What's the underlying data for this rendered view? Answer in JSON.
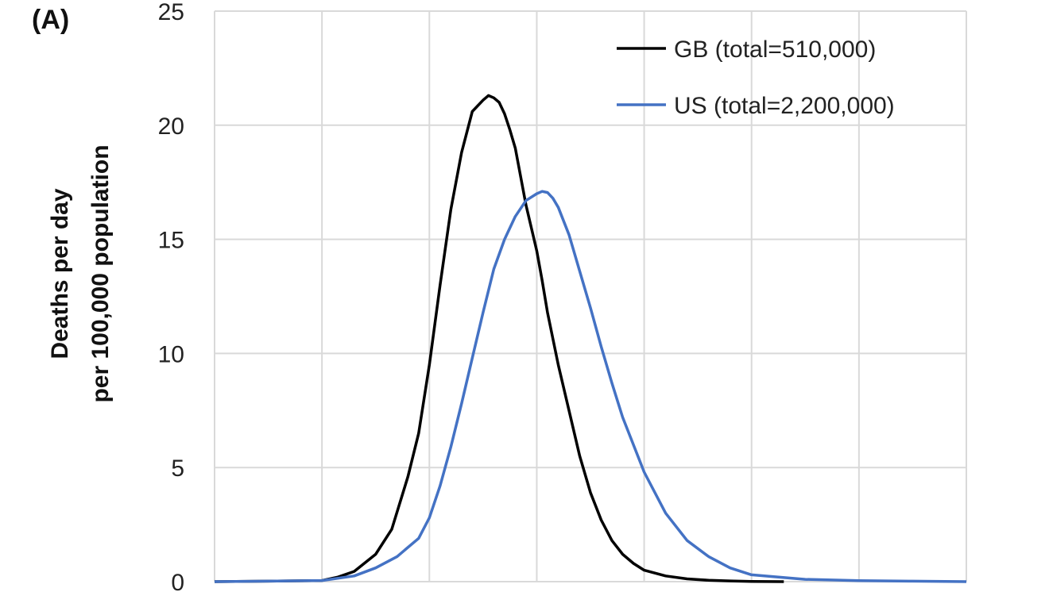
{
  "panel_label": "(A)",
  "chart_data": {
    "type": "line",
    "title": "",
    "xlabel": "",
    "ylabel_lines": [
      "Deaths per day",
      "per 100,000 population"
    ],
    "ylim": [
      0,
      25
    ],
    "y_ticks": [
      0,
      5,
      10,
      15,
      20,
      25
    ],
    "xlim": [
      0,
      7
    ],
    "x_gridlines": [
      0,
      1,
      2,
      3,
      4,
      5,
      6,
      7
    ],
    "grid": true,
    "legend_position": "top-right",
    "series": [
      {
        "name": "GB (total=510,000)",
        "color": "#000000",
        "x": [
          0.0,
          0.5,
          1.0,
          1.15,
          1.3,
          1.5,
          1.65,
          1.8,
          1.9,
          2.0,
          2.1,
          2.2,
          2.3,
          2.4,
          2.5,
          2.55,
          2.6,
          2.65,
          2.7,
          2.75,
          2.8,
          2.9,
          3.0,
          3.05,
          3.1,
          3.2,
          3.3,
          3.4,
          3.5,
          3.6,
          3.7,
          3.8,
          3.9,
          4.0,
          4.2,
          4.4,
          4.6,
          4.8,
          5.0,
          5.3
        ],
        "values": [
          0.0,
          0.02,
          0.05,
          0.2,
          0.45,
          1.2,
          2.3,
          4.6,
          6.5,
          9.5,
          13.0,
          16.3,
          18.8,
          20.6,
          21.1,
          21.3,
          21.2,
          21.0,
          20.5,
          19.8,
          19.0,
          16.5,
          14.5,
          13.2,
          11.8,
          9.5,
          7.5,
          5.5,
          3.9,
          2.7,
          1.8,
          1.2,
          0.8,
          0.5,
          0.25,
          0.12,
          0.06,
          0.03,
          0.01,
          0.0
        ]
      },
      {
        "name": "US (total=2,200,000)",
        "color": "#4472c4",
        "x": [
          0.0,
          0.5,
          1.0,
          1.3,
          1.5,
          1.7,
          1.9,
          2.0,
          2.1,
          2.2,
          2.3,
          2.4,
          2.5,
          2.6,
          2.7,
          2.8,
          2.9,
          3.0,
          3.05,
          3.1,
          3.15,
          3.2,
          3.3,
          3.4,
          3.5,
          3.6,
          3.7,
          3.8,
          4.0,
          4.2,
          4.4,
          4.6,
          4.8,
          5.0,
          5.5,
          6.0,
          6.5,
          7.0
        ],
        "values": [
          0.0,
          0.02,
          0.05,
          0.25,
          0.6,
          1.1,
          1.9,
          2.8,
          4.2,
          5.9,
          7.8,
          9.8,
          11.8,
          13.7,
          15.0,
          16.0,
          16.7,
          17.0,
          17.1,
          17.05,
          16.8,
          16.4,
          15.2,
          13.6,
          12.0,
          10.3,
          8.7,
          7.2,
          4.8,
          3.0,
          1.8,
          1.1,
          0.6,
          0.3,
          0.1,
          0.04,
          0.02,
          0.0
        ]
      }
    ]
  }
}
